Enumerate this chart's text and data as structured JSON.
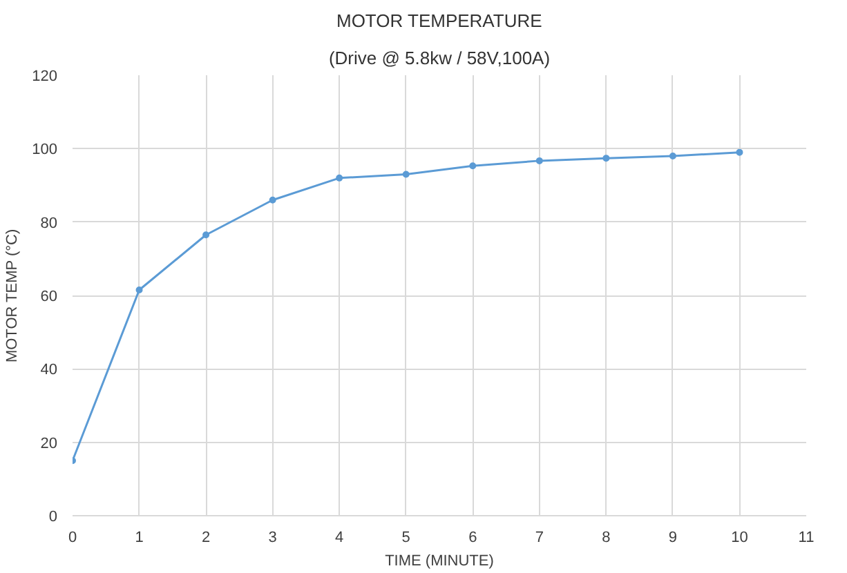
{
  "chart_data": {
    "type": "line",
    "title": "MOTOR TEMPERATURE",
    "subtitle": "(Drive @ 5.8kw / 58V,100A)",
    "xlabel": "TIME (MINUTE)",
    "ylabel": "MOTOR TEMP (°C)",
    "x": [
      0,
      1,
      2,
      3,
      4,
      5,
      6,
      7,
      8,
      9,
      10
    ],
    "series": [
      {
        "color": "#5b9bd5",
        "values": [
          15,
          61.5,
          76.5,
          86,
          92,
          93,
          95.3,
          96.7,
          97.4,
          98,
          99
        ]
      }
    ],
    "xlim": [
      0,
      11
    ],
    "xticks": [
      0,
      1,
      2,
      3,
      4,
      5,
      6,
      7,
      8,
      9,
      10,
      11
    ],
    "ylim": [
      0,
      120
    ],
    "yticks": [
      0,
      20,
      40,
      60,
      80,
      100,
      120
    ],
    "grid": true,
    "marker": "circle",
    "line_style": "solid"
  }
}
